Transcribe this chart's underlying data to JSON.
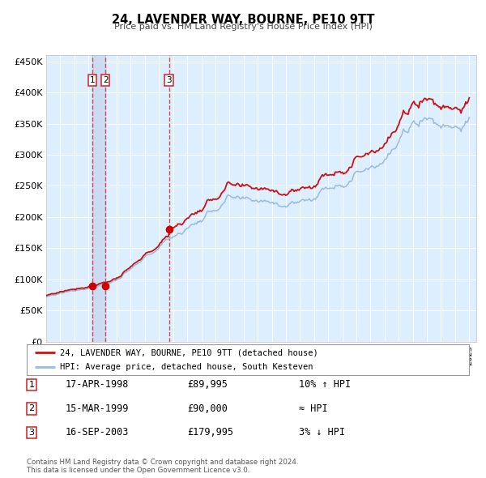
{
  "title": "24, LAVENDER WAY, BOURNE, PE10 9TT",
  "subtitle": "Price paid vs. HM Land Registry's House Price Index (HPI)",
  "xlim": [
    1995.0,
    2025.5
  ],
  "ylim": [
    0,
    460000
  ],
  "yticks": [
    0,
    50000,
    100000,
    150000,
    200000,
    250000,
    300000,
    350000,
    400000,
    450000
  ],
  "ytick_labels": [
    "£0",
    "£50K",
    "£100K",
    "£150K",
    "£200K",
    "£250K",
    "£300K",
    "£350K",
    "£400K",
    "£450K"
  ],
  "sale_prices": [
    89995,
    90000,
    179995
  ],
  "sale_labels": [
    "1",
    "2",
    "3"
  ],
  "sale_date_decimals": [
    1998.29,
    1999.2,
    2003.71
  ],
  "vline_color": "#cc3333",
  "sale_dot_color": "#cc0000",
  "hpi_line_color": "#99bbdd",
  "price_line_color": "#cc1111",
  "shade_color": "#c8d8f0",
  "legend_entries": [
    "24, LAVENDER WAY, BOURNE, PE10 9TT (detached house)",
    "HPI: Average price, detached house, South Kesteven"
  ],
  "table_rows": [
    [
      "1",
      "17-APR-1998",
      "£89,995",
      "10% ↑ HPI"
    ],
    [
      "2",
      "15-MAR-1999",
      "£90,000",
      "≈ HPI"
    ],
    [
      "3",
      "16-SEP-2003",
      "£179,995",
      "3% ↓ HPI"
    ]
  ],
  "footnote": "Contains HM Land Registry data © Crown copyright and database right 2024.\nThis data is licensed under the Open Government Licence v3.0.",
  "plot_bg_color": "#ddeeff",
  "fig_bg_color": "#ffffff"
}
